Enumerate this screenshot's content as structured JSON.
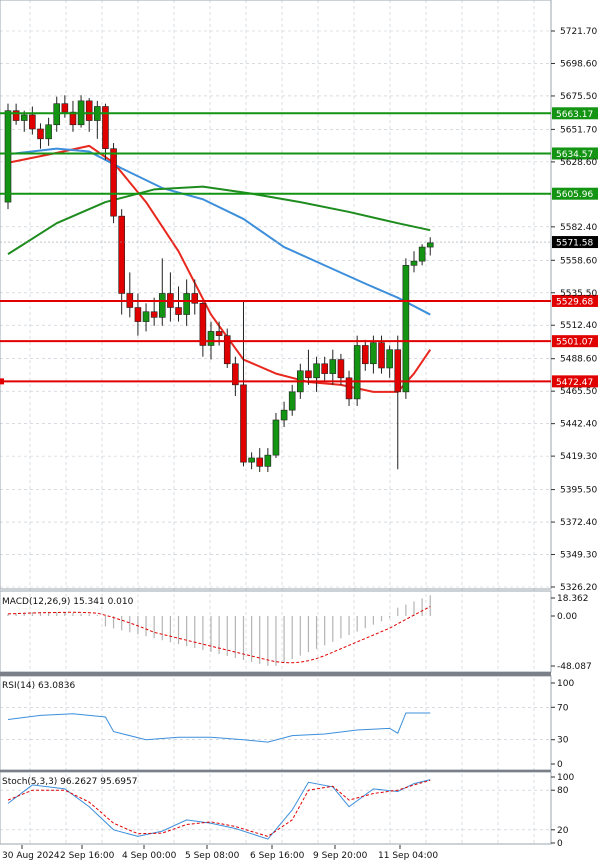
{
  "price_axis_ticks": [
    "5721.70",
    "5698.60",
    "5675.50",
    "5651.70",
    "5628.60",
    "5582.40",
    "5558.60",
    "5535.50",
    "5512.40",
    "5488.60",
    "5465.50",
    "5442.40",
    "5419.30",
    "5395.50",
    "5372.40",
    "5349.30",
    "5326.20"
  ],
  "levels": [
    {
      "label": "5663.17",
      "value": 5663.17,
      "color": "#139413"
    },
    {
      "label": "5634.57",
      "value": 5634.57,
      "color": "#139413"
    },
    {
      "label": "5605.96",
      "value": 5605.96,
      "color": "#139413"
    },
    {
      "label": "5529.68",
      "value": 5529.68,
      "color": "#e00000"
    },
    {
      "label": "5501.07",
      "value": 5501.07,
      "color": "#e00000"
    },
    {
      "label": "5472.47",
      "value": 5472.47,
      "color": "#e00000"
    }
  ],
  "current_price": "5571.58",
  "date_labels": [
    "30 Aug 2024",
    "2 Sep 16:00",
    "4 Sep 00:00",
    "5 Sep 08:00",
    "6 Sep 16:00",
    "9 Sep 20:00",
    "11 Sep 04:00"
  ],
  "macd": {
    "label": "MACD(12,26,9) 15.341 0.010",
    "ticks": [
      "18.362",
      "0.00",
      "-48.087"
    ]
  },
  "rsi": {
    "label": "RSI(14) 63.0836",
    "ticks": [
      "100",
      "70",
      "30",
      "0"
    ]
  },
  "stoch": {
    "label": "Stoch(5,3,3) 96.2627 95.6957",
    "ticks": [
      "100",
      "80",
      "20",
      "0"
    ]
  },
  "colors": {
    "up": "#139413",
    "down": "#e00000",
    "ma_short": "#e8281e",
    "ma_mid": "#3d8fdb",
    "ma_long": "#1e8c1e",
    "grid": "#c0c8d0",
    "signal": "#e00000",
    "histogram": "#b4b4b4",
    "indicator_line": "#3d8fdb"
  },
  "chart_data": {
    "type": "candlestick",
    "price_range": [
      5326.2,
      5730
    ],
    "candles": [
      [
        5600,
        5670,
        5595,
        5665
      ],
      [
        5665,
        5670,
        5655,
        5658
      ],
      [
        5658,
        5665,
        5650,
        5662
      ],
      [
        5662,
        5668,
        5648,
        5652
      ],
      [
        5652,
        5656,
        5638,
        5645
      ],
      [
        5645,
        5660,
        5640,
        5655
      ],
      [
        5655,
        5675,
        5650,
        5670
      ],
      [
        5670,
        5676,
        5660,
        5664
      ],
      [
        5664,
        5672,
        5650,
        5655
      ],
      [
        5655,
        5676,
        5653,
        5672
      ],
      [
        5672,
        5674,
        5650,
        5658
      ],
      [
        5658,
        5672,
        5645,
        5668
      ],
      [
        5668,
        5670,
        5630,
        5638
      ],
      [
        5638,
        5642,
        5585,
        5590
      ],
      [
        5590,
        5595,
        5520,
        5535
      ],
      [
        5535,
        5550,
        5518,
        5525
      ],
      [
        5525,
        5535,
        5505,
        5515
      ],
      [
        5515,
        5528,
        5508,
        5522
      ],
      [
        5522,
        5532,
        5512,
        5518
      ],
      [
        5518,
        5560,
        5512,
        5535
      ],
      [
        5535,
        5550,
        5515,
        5525
      ],
      [
        5525,
        5540,
        5515,
        5520
      ],
      [
        5520,
        5545,
        5512,
        5535
      ],
      [
        5535,
        5545,
        5520,
        5528
      ],
      [
        5528,
        5530,
        5490,
        5498
      ],
      [
        5498,
        5515,
        5488,
        5508
      ],
      [
        5508,
        5515,
        5498,
        5505
      ],
      [
        5505,
        5510,
        5482,
        5485
      ],
      [
        5485,
        5490,
        5462,
        5470
      ],
      [
        5470,
        5530,
        5412,
        5415
      ],
      [
        5415,
        5422,
        5410,
        5418
      ],
      [
        5418,
        5425,
        5408,
        5412
      ],
      [
        5412,
        5425,
        5408,
        5420
      ],
      [
        5420,
        5450,
        5418,
        5445
      ],
      [
        5445,
        5458,
        5440,
        5452
      ],
      [
        5452,
        5470,
        5448,
        5465
      ],
      [
        5465,
        5485,
        5460,
        5480
      ],
      [
        5480,
        5495,
        5470,
        5475
      ],
      [
        5475,
        5490,
        5465,
        5485
      ],
      [
        5485,
        5490,
        5472,
        5478
      ],
      [
        5478,
        5495,
        5470,
        5488
      ],
      [
        5488,
        5492,
        5470,
        5475
      ],
      [
        5475,
        5480,
        5455,
        5460
      ],
      [
        5460,
        5505,
        5455,
        5498
      ],
      [
        5498,
        5502,
        5480,
        5485
      ],
      [
        5485,
        5505,
        5478,
        5500
      ],
      [
        5500,
        5505,
        5478,
        5482
      ],
      [
        5482,
        5498,
        5475,
        5495
      ],
      [
        5495,
        5505,
        5410,
        5465
      ],
      [
        5465,
        5560,
        5460,
        5555
      ],
      [
        5555,
        5565,
        5550,
        5558
      ],
      [
        5558,
        5570,
        5555,
        5568
      ],
      [
        5568,
        5575,
        5562,
        5571
      ]
    ],
    "moving_averages": [
      {
        "name": "ma_short",
        "values": [
          [
            0,
            5628
          ],
          [
            6,
            5635
          ],
          [
            10,
            5640
          ],
          [
            13,
            5628
          ],
          [
            17,
            5600
          ],
          [
            21,
            5565
          ],
          [
            25,
            5520
          ],
          [
            29,
            5488
          ],
          [
            33,
            5478
          ],
          [
            37,
            5472
          ],
          [
            41,
            5470
          ],
          [
            45,
            5465
          ],
          [
            48,
            5465
          ],
          [
            50,
            5478
          ],
          [
            52,
            5495
          ]
        ]
      },
      {
        "name": "ma_mid",
        "values": [
          [
            0,
            5634
          ],
          [
            6,
            5638
          ],
          [
            10,
            5636
          ],
          [
            14,
            5624
          ],
          [
            19,
            5610
          ],
          [
            24,
            5602
          ],
          [
            29,
            5588
          ],
          [
            34,
            5568
          ],
          [
            39,
            5555
          ],
          [
            44,
            5542
          ],
          [
            48,
            5532
          ],
          [
            52,
            5520
          ]
        ]
      },
      {
        "name": "ma_long",
        "values": [
          [
            0,
            5563
          ],
          [
            6,
            5585
          ],
          [
            12,
            5600
          ],
          [
            18,
            5609
          ],
          [
            24,
            5611
          ],
          [
            30,
            5606
          ],
          [
            36,
            5600
          ],
          [
            42,
            5593
          ],
          [
            48,
            5585
          ],
          [
            52,
            5580
          ]
        ]
      }
    ]
  }
}
